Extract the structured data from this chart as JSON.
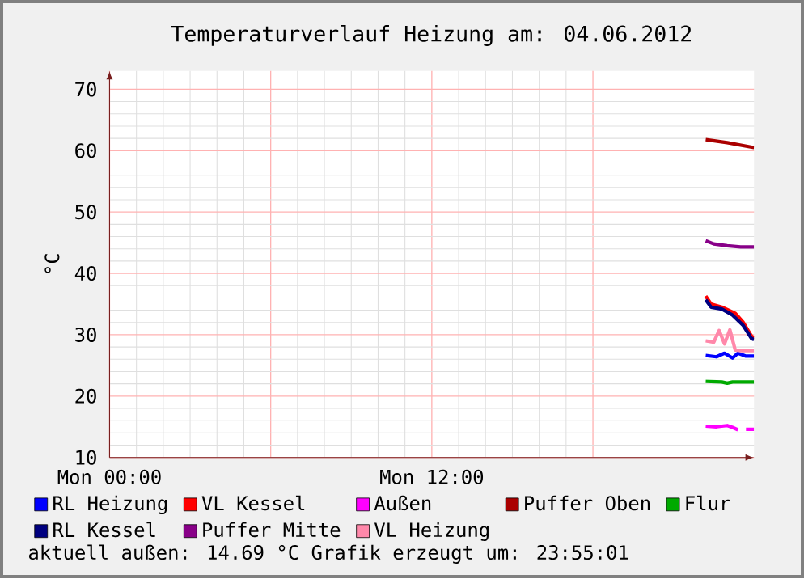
{
  "chart_data": {
    "type": "line",
    "title": "Temperaturverlauf Heizung am: 04.06.2012",
    "ylabel": "°C",
    "xlim": [
      "2012-06-04T00:00",
      "2012-06-05T00:00"
    ],
    "ylim": [
      10,
      73
    ],
    "xticks": [
      {
        "value": "2012-06-04T00:00",
        "label": "Mon 00:00"
      },
      {
        "value": "2012-06-04T06:00",
        "label": null
      },
      {
        "value": "2012-06-04T12:00",
        "label": "Mon 12:00"
      },
      {
        "value": "2012-06-04T18:00",
        "label": null
      }
    ],
    "yticks": [
      10,
      20,
      30,
      40,
      50,
      60,
      70
    ],
    "grid": true,
    "legend": "bottom",
    "marker": "none",
    "line_style": "solid",
    "series": [
      {
        "name": "RL Heizung",
        "color": "#0000ff",
        "x": [
          "2012-06-04T22:12",
          "2012-06-04T22:36",
          "2012-06-04T22:54",
          "2012-06-04T23:12",
          "2012-06-04T23:24",
          "2012-06-04T23:42",
          "2012-06-05T00:00"
        ],
        "values": [
          26.6,
          26.4,
          27.0,
          26.2,
          27.0,
          26.5,
          26.5
        ]
      },
      {
        "name": "VL Kessel",
        "color": "#ff0000",
        "x": [
          "2012-06-04T22:12",
          "2012-06-04T22:24",
          "2012-06-04T22:48",
          "2012-06-04T23:18",
          "2012-06-04T23:36",
          "2012-06-04T23:54",
          "2012-06-05T00:00"
        ],
        "values": [
          36.3,
          35.0,
          34.5,
          33.5,
          32.0,
          29.8,
          29.5
        ]
      },
      {
        "name": "Außen",
        "color": "#ff00ff",
        "x": [
          "2012-06-04T22:12",
          "2012-06-04T22:36",
          "2012-06-04T23:00",
          "2012-06-04T23:12",
          "2012-06-04T23:24",
          "2012-06-04T23:30",
          "2012-06-04T23:42",
          "2012-06-05T00:00"
        ],
        "values": [
          15.1,
          15.0,
          15.2,
          14.9,
          14.5,
          null,
          14.6,
          14.6
        ]
      },
      {
        "name": "Puffer Oben",
        "color": "#aa0000",
        "x": [
          "2012-06-04T22:12",
          "2012-06-04T23:00",
          "2012-06-05T00:00"
        ],
        "values": [
          61.8,
          61.3,
          60.5
        ]
      },
      {
        "name": "Flur",
        "color": "#00aa00",
        "x": [
          "2012-06-04T22:12",
          "2012-06-04T22:48",
          "2012-06-04T23:00",
          "2012-06-04T23:12",
          "2012-06-05T00:00"
        ],
        "values": [
          22.4,
          22.3,
          22.1,
          22.3,
          22.3
        ]
      },
      {
        "name": "RL Kessel",
        "color": "#000080",
        "x": [
          "2012-06-04T22:12",
          "2012-06-04T22:24",
          "2012-06-04T22:48",
          "2012-06-04T23:12",
          "2012-06-04T23:36",
          "2012-06-04T23:54",
          "2012-06-05T00:00"
        ],
        "values": [
          35.7,
          34.5,
          34.2,
          33.2,
          31.5,
          29.4,
          29.2
        ]
      },
      {
        "name": "Puffer Mitte",
        "color": "#880088",
        "x": [
          "2012-06-04T22:12",
          "2012-06-04T22:30",
          "2012-06-04T23:00",
          "2012-06-04T23:30",
          "2012-06-05T00:00"
        ],
        "values": [
          45.3,
          44.8,
          44.5,
          44.3,
          44.3
        ]
      },
      {
        "name": "VL Heizung",
        "color": "#ff88aa",
        "x": [
          "2012-06-04T22:12",
          "2012-06-04T22:30",
          "2012-06-04T22:42",
          "2012-06-04T22:54",
          "2012-06-04T23:06",
          "2012-06-04T23:18",
          "2012-06-04T23:30",
          "2012-06-05T00:00"
        ],
        "values": [
          29.0,
          28.8,
          30.7,
          28.5,
          30.8,
          27.5,
          27.4,
          27.4
        ]
      }
    ],
    "annotations": [
      "aktuell außen: 14.69 °C  Grafik erzeugt um: 23:55:01"
    ]
  }
}
